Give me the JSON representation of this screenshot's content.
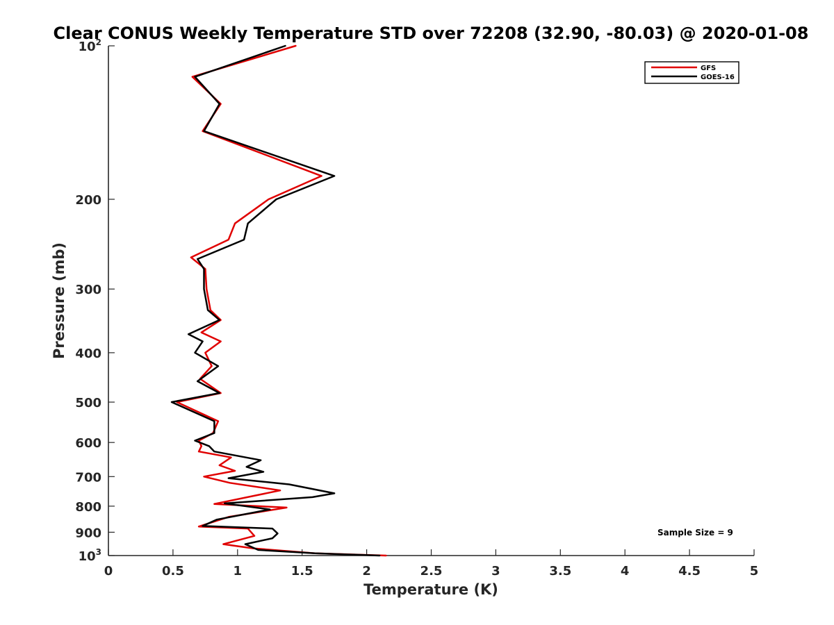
{
  "chart_data": {
    "type": "line",
    "title": "Clear CONUS Weekly Temperature STD over 72208 (32.90, -80.03) @ 2020-01-08",
    "xlabel": "Temperature (K)",
    "ylabel": "Pressure (mb)",
    "xlim": [
      0,
      5
    ],
    "ylim": [
      100,
      1000
    ],
    "y_scale": "log",
    "y_reversed": true,
    "grid": false,
    "x_ticks": [
      0,
      0.5,
      1,
      1.5,
      2,
      2.5,
      3,
      3.5,
      4,
      4.5,
      5
    ],
    "x_tick_labels": [
      "0",
      "0.5",
      "1",
      "1.5",
      "2",
      "2.5",
      "3",
      "3.5",
      "4",
      "4.5",
      "5"
    ],
    "y_ticks": [
      {
        "value": 100,
        "base": "10",
        "exp": "2"
      },
      {
        "value": 200,
        "label": "200"
      },
      {
        "value": 300,
        "label": "300"
      },
      {
        "value": 400,
        "label": "400"
      },
      {
        "value": 500,
        "label": "500"
      },
      {
        "value": 600,
        "label": "600"
      },
      {
        "value": 700,
        "label": "700"
      },
      {
        "value": 800,
        "label": "800"
      },
      {
        "value": 900,
        "label": "900"
      },
      {
        "value": 1000,
        "base": "10",
        "exp": "3"
      }
    ],
    "legend": {
      "position": "top-right",
      "entries": [
        "GFS",
        "GOES-16"
      ]
    },
    "annotation": "Sample Size = 9",
    "series": [
      {
        "name": "GFS",
        "color": "#e00000",
        "points": [
          [
            1.45,
            100
          ],
          [
            0.65,
            115
          ],
          [
            0.87,
            130
          ],
          [
            0.73,
            147
          ],
          [
            1.65,
            180
          ],
          [
            1.24,
            200
          ],
          [
            0.98,
            223
          ],
          [
            0.93,
            240
          ],
          [
            0.64,
            260
          ],
          [
            0.75,
            274
          ],
          [
            0.76,
            300
          ],
          [
            0.79,
            330
          ],
          [
            0.87,
            345
          ],
          [
            0.72,
            365
          ],
          [
            0.87,
            380
          ],
          [
            0.75,
            400
          ],
          [
            0.8,
            425
          ],
          [
            0.71,
            450
          ],
          [
            0.87,
            480
          ],
          [
            0.53,
            500
          ],
          [
            0.85,
            545
          ],
          [
            0.81,
            575
          ],
          [
            0.7,
            595
          ],
          [
            0.72,
            610
          ],
          [
            0.7,
            625
          ],
          [
            0.95,
            642
          ],
          [
            0.86,
            665
          ],
          [
            0.98,
            682
          ],
          [
            0.74,
            700
          ],
          [
            0.94,
            720
          ],
          [
            1.33,
            745
          ],
          [
            0.82,
            792
          ],
          [
            1.38,
            805
          ],
          [
            0.93,
            840
          ],
          [
            0.7,
            877
          ],
          [
            1.08,
            885
          ],
          [
            1.13,
            915
          ],
          [
            0.89,
            950
          ],
          [
            1.12,
            968
          ],
          [
            1.6,
            990
          ],
          [
            2.15,
            1000
          ]
        ]
      },
      {
        "name": "GOES-16",
        "color": "#000000",
        "points": [
          [
            1.37,
            100
          ],
          [
            0.67,
            115
          ],
          [
            0.86,
            130
          ],
          [
            0.74,
            147
          ],
          [
            1.75,
            180
          ],
          [
            1.3,
            200
          ],
          [
            1.08,
            223
          ],
          [
            1.05,
            240
          ],
          [
            0.69,
            262
          ],
          [
            0.74,
            274
          ],
          [
            0.74,
            300
          ],
          [
            0.77,
            330
          ],
          [
            0.86,
            345
          ],
          [
            0.62,
            368
          ],
          [
            0.73,
            380
          ],
          [
            0.67,
            400
          ],
          [
            0.85,
            425
          ],
          [
            0.69,
            455
          ],
          [
            0.86,
            480
          ],
          [
            0.49,
            500
          ],
          [
            0.82,
            545
          ],
          [
            0.82,
            575
          ],
          [
            0.67,
            595
          ],
          [
            0.78,
            610
          ],
          [
            0.82,
            625
          ],
          [
            1.18,
            650
          ],
          [
            1.07,
            670
          ],
          [
            1.2,
            685
          ],
          [
            0.93,
            705
          ],
          [
            1.4,
            725
          ],
          [
            1.75,
            755
          ],
          [
            1.58,
            768
          ],
          [
            0.9,
            790
          ],
          [
            1.25,
            812
          ],
          [
            0.84,
            850
          ],
          [
            0.73,
            875
          ],
          [
            1.27,
            885
          ],
          [
            1.31,
            905
          ],
          [
            1.27,
            925
          ],
          [
            1.06,
            950
          ],
          [
            1.16,
            975
          ],
          [
            1.6,
            990
          ],
          [
            2.1,
            1000
          ]
        ]
      }
    ]
  }
}
